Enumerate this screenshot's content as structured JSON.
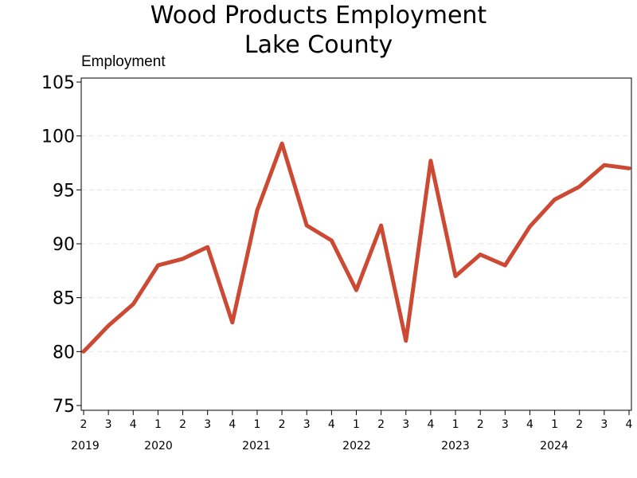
{
  "chart_data": {
    "type": "line",
    "title": "Wood Products Employment",
    "subtitle": "Lake County",
    "ylabel": "Employment",
    "xlabel": "",
    "ylim": [
      75,
      105
    ],
    "yticks": [
      75,
      80,
      85,
      90,
      95,
      100,
      105
    ],
    "grid": "horizontal dashed",
    "line_color": "#cc4a33",
    "x": [
      "2019 Q2",
      "2019 Q3",
      "2019 Q4",
      "2020 Q1",
      "2020 Q2",
      "2020 Q3",
      "2020 Q4",
      "2021 Q1",
      "2021 Q2",
      "2021 Q3",
      "2021 Q4",
      "2022 Q1",
      "2022 Q2",
      "2022 Q3",
      "2022 Q4",
      "2023 Q1",
      "2023 Q2",
      "2023 Q3",
      "2023 Q4",
      "2024 Q1",
      "2024 Q2",
      "2024 Q3",
      "2024 Q4"
    ],
    "quarter_labels": [
      "2",
      "3",
      "4",
      "1",
      "2",
      "3",
      "4",
      "1",
      "2",
      "3",
      "4",
      "1",
      "2",
      "3",
      "4",
      "1",
      "2",
      "3",
      "4",
      "1",
      "2",
      "3",
      "4"
    ],
    "year_labels": [
      "2019",
      "2020",
      "2021",
      "2022",
      "2023",
      "2024"
    ],
    "series": [
      {
        "values": [
          80.0,
          82.4,
          84.4,
          88.0,
          88.6,
          89.7,
          82.7,
          93.1,
          99.3,
          91.7,
          90.3,
          85.7,
          91.7,
          81.0,
          97.7,
          87.0,
          89.0,
          88.0,
          91.6,
          94.1,
          95.3,
          97.3,
          97.0
        ]
      }
    ]
  }
}
